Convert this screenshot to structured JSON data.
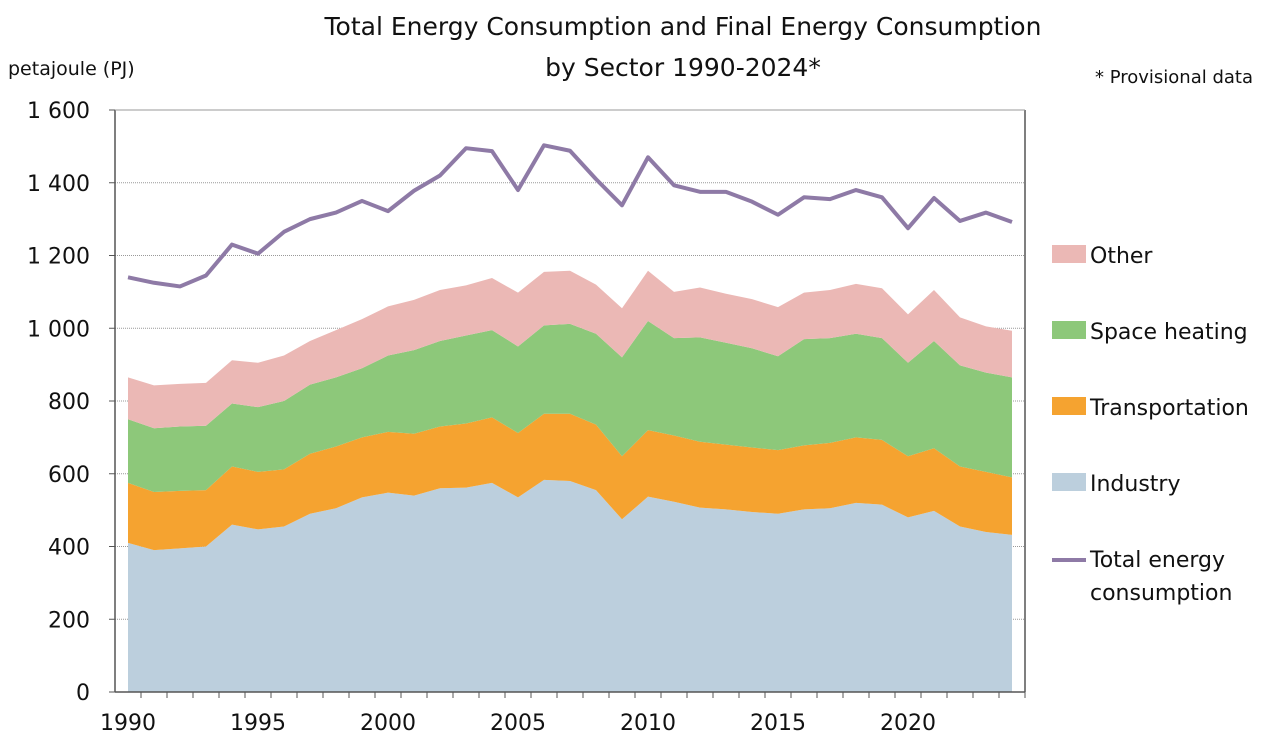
{
  "chart_data": {
    "type": "area",
    "title_line1": "Total Energy Consumption and Final Energy Consumption",
    "title_line2": "by Sector 1990-2024*",
    "ylabel": "petajoule (PJ)",
    "note": "* Provisional data",
    "ylim": [
      0,
      1600
    ],
    "yticks": [
      0,
      200,
      400,
      600,
      800,
      1000,
      1200,
      1400,
      1600
    ],
    "ytick_labels": [
      "0",
      "200",
      "400",
      "600",
      "800",
      "1 000",
      "1 200",
      "1 400",
      "1 600"
    ],
    "xtick_labels": [
      "1990",
      "1995",
      "2000",
      "2005",
      "2010",
      "2015",
      "2020"
    ],
    "grid": true,
    "legend_placement": "right",
    "x": [
      1990,
      1991,
      1992,
      1993,
      1994,
      1995,
      1996,
      1997,
      1998,
      1999,
      2000,
      2001,
      2002,
      2003,
      2004,
      2005,
      2006,
      2007,
      2008,
      2009,
      2010,
      2011,
      2012,
      2013,
      2014,
      2015,
      2016,
      2017,
      2018,
      2019,
      2020,
      2021,
      2022,
      2023,
      2024
    ],
    "stacked_series": [
      {
        "name": "Industry",
        "color": "#bccfdd",
        "values": [
          410,
          390,
          395,
          400,
          460,
          447,
          455,
          490,
          505,
          535,
          548,
          540,
          560,
          562,
          575,
          535,
          583,
          580,
          555,
          475,
          537,
          523,
          507,
          502,
          495,
          490,
          502,
          505,
          520,
          515,
          480,
          498,
          455,
          440,
          432
        ]
      },
      {
        "name": "Transportation",
        "color": "#f5a330",
        "values": [
          165,
          160,
          158,
          155,
          160,
          158,
          157,
          165,
          170,
          165,
          167,
          170,
          170,
          176,
          180,
          177,
          182,
          185,
          180,
          173,
          183,
          182,
          181,
          178,
          177,
          175,
          176,
          180,
          180,
          178,
          168,
          172,
          165,
          165,
          158
        ]
      },
      {
        "name": "Space heating",
        "color": "#8dc87a",
        "values": [
          175,
          175,
          177,
          177,
          173,
          178,
          188,
          190,
          190,
          190,
          210,
          230,
          235,
          242,
          240,
          238,
          243,
          247,
          250,
          272,
          300,
          268,
          287,
          280,
          273,
          258,
          292,
          288,
          285,
          280,
          257,
          295,
          278,
          273,
          275
        ]
      },
      {
        "name": "Other",
        "color": "#ebb8b5",
        "values": [
          115,
          118,
          117,
          118,
          119,
          122,
          125,
          120,
          130,
          135,
          135,
          138,
          140,
          138,
          143,
          148,
          147,
          146,
          135,
          135,
          138,
          127,
          137,
          135,
          135,
          135,
          128,
          132,
          137,
          137,
          133,
          140,
          132,
          127,
          128
        ]
      }
    ],
    "line_series": {
      "name_line1": "Total energy",
      "name_line2": "consumption",
      "color": "#8e7aa6",
      "values": [
        1140,
        1125,
        1115,
        1145,
        1230,
        1205,
        1265,
        1300,
        1318,
        1350,
        1322,
        1378,
        1420,
        1495,
        1487,
        1380,
        1503,
        1488,
        1410,
        1338,
        1470,
        1393,
        1375,
        1375,
        1348,
        1312,
        1360,
        1355,
        1380,
        1360,
        1275,
        1358,
        1295,
        1318,
        1292
      ]
    }
  }
}
